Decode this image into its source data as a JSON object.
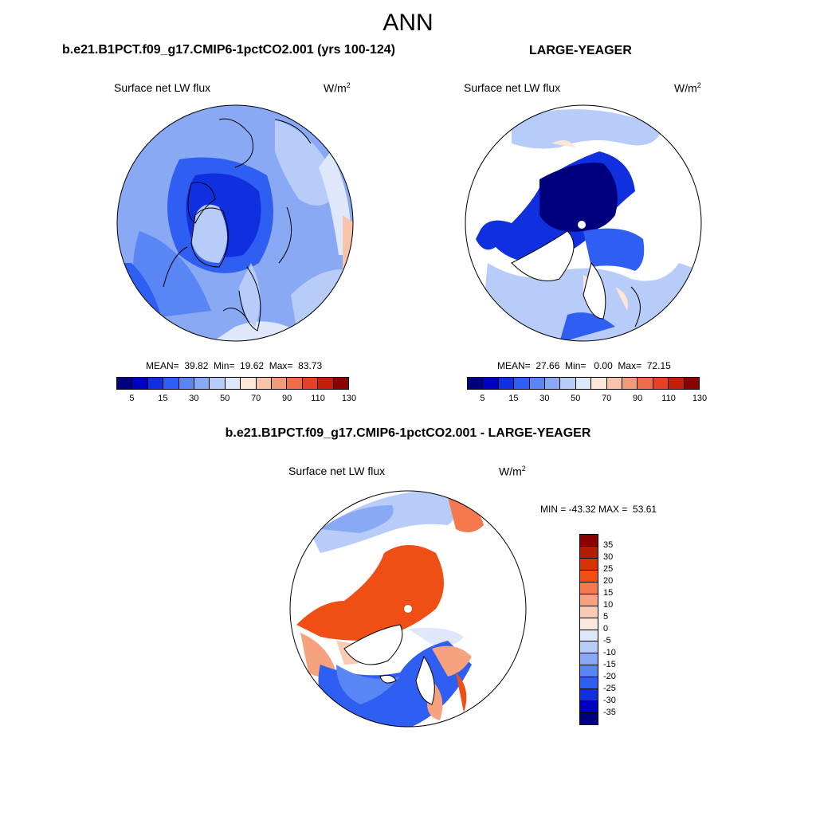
{
  "main_title": "ANN",
  "panels": [
    {
      "title": "b.e21.B1PCT.f09_g17.CMIP6-1pctCO2.001 (yrs 100-124)",
      "variable": "Surface net LW flux",
      "units": "W/m",
      "units_sup": "2",
      "stats": "MEAN=  39.82  Min=  19.62  Max=  83.73",
      "colorbar_labels": [
        "5",
        "15",
        "30",
        "50",
        "70",
        "90",
        "110",
        "130"
      ]
    },
    {
      "title": "LARGE-YEAGER",
      "variable": "Surface net LW flux",
      "units": "W/m",
      "units_sup": "2",
      "stats": "MEAN=  27.66  Min=   0.00  Max=  72.15",
      "colorbar_labels": [
        "5",
        "15",
        "30",
        "50",
        "70",
        "90",
        "110",
        "130"
      ]
    },
    {
      "title": "b.e21.B1PCT.f09_g17.CMIP6-1pctCO2.001 - LARGE-YEAGER",
      "variable": "Surface net LW flux",
      "units": "W/m",
      "units_sup": "2",
      "stats": "MIN = -43.32 MAX =  53.61",
      "colorbar_labels": [
        "35",
        "30",
        "25",
        "20",
        "15",
        "10",
        "5",
        "0",
        "-5",
        "-10",
        "-15",
        "-20",
        "-25",
        "-30",
        "-35"
      ]
    }
  ],
  "colors": {
    "seq": [
      "#00007f",
      "#0000c0",
      "#1030e0",
      "#2e5ef2",
      "#5a86f5",
      "#8aa9f5",
      "#b7ccf8",
      "#dfe8fb",
      "#fde5d8",
      "#f9c3a9",
      "#f59a78",
      "#ee6e4c",
      "#e34322",
      "#c41f08",
      "#8b0000"
    ],
    "diff": [
      "#8b0000",
      "#b31d00",
      "#d63300",
      "#ef4f14",
      "#f47a4e",
      "#f6a27e",
      "#f9cbb2",
      "#fce9dd",
      "#dfe8fb",
      "#b7ccf8",
      "#8aa9f5",
      "#5a86f5",
      "#2e5ef2",
      "#1030e0",
      "#0000c0",
      "#00007f"
    ]
  }
}
